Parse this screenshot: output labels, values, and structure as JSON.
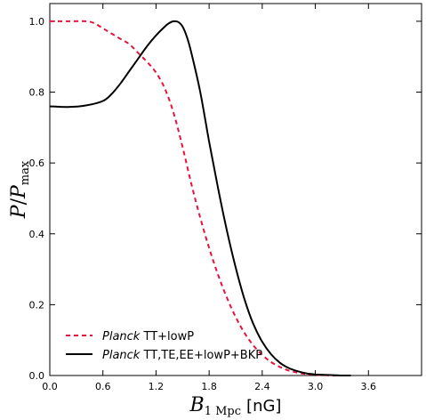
{
  "chart_data": {
    "type": "line",
    "xlabel": "B_{1 Mpc} [nG]",
    "xlabel_main": "B",
    "xlabel_sub": "1 Mpc",
    "xlabel_unit": "[nG]",
    "ylabel": "P/P_max",
    "ylabel_p": "P",
    "ylabel_slash": "/",
    "ylabel_pmax": "P",
    "ylabel_sub": "max",
    "xlim": [
      0.0,
      4.2
    ],
    "ylim": [
      0.0,
      1.05
    ],
    "xticks": [
      "0.0",
      "0.6",
      "1.2",
      "1.8",
      "2.4",
      "3.0",
      "3.6"
    ],
    "xtick_values": [
      0.0,
      0.6,
      1.2,
      1.8,
      2.4,
      3.0,
      3.6
    ],
    "yticks": [
      "0.0",
      "0.2",
      "0.4",
      "0.6",
      "0.8",
      "1.0"
    ],
    "ytick_values": [
      0.0,
      0.2,
      0.4,
      0.6,
      0.8,
      1.0
    ],
    "grid": false,
    "legend_position": "bottom-left",
    "series": [
      {
        "name_italic": "Planck",
        "name_rest": " TT+lowP",
        "color": "#e8123c",
        "style": "dashed",
        "x": [
          0.0,
          0.2,
          0.4,
          0.5,
          0.6,
          0.7,
          0.8,
          0.9,
          1.0,
          1.1,
          1.2,
          1.3,
          1.4,
          1.5,
          1.6,
          1.7,
          1.8,
          1.9,
          2.0,
          2.1,
          2.2,
          2.3,
          2.4,
          2.5,
          2.6,
          2.7,
          2.8,
          2.9,
          3.0,
          3.1,
          3.2,
          3.3,
          3.4
        ],
        "y": [
          1.0,
          1.0,
          1.0,
          0.995,
          0.98,
          0.965,
          0.95,
          0.935,
          0.91,
          0.885,
          0.855,
          0.81,
          0.74,
          0.645,
          0.54,
          0.445,
          0.36,
          0.285,
          0.22,
          0.165,
          0.12,
          0.085,
          0.058,
          0.038,
          0.024,
          0.014,
          0.008,
          0.004,
          0.002,
          0.001,
          0.0,
          0.0,
          0.0
        ]
      },
      {
        "name_italic": "Planck",
        "name_rest": " TT,TE,EE+lowP+BKP",
        "color": "#000000",
        "style": "solid",
        "x": [
          0.0,
          0.2,
          0.4,
          0.6,
          0.7,
          0.8,
          0.9,
          1.0,
          1.1,
          1.2,
          1.3,
          1.35,
          1.4,
          1.45,
          1.5,
          1.55,
          1.6,
          1.7,
          1.8,
          1.9,
          2.0,
          2.1,
          2.2,
          2.3,
          2.4,
          2.5,
          2.6,
          2.7,
          2.8,
          2.9,
          3.0,
          3.1,
          3.2,
          3.3,
          3.4
        ],
        "y": [
          0.76,
          0.758,
          0.762,
          0.775,
          0.795,
          0.825,
          0.86,
          0.895,
          0.93,
          0.96,
          0.985,
          0.995,
          1.0,
          0.998,
          0.985,
          0.955,
          0.91,
          0.8,
          0.66,
          0.53,
          0.41,
          0.305,
          0.215,
          0.145,
          0.095,
          0.06,
          0.036,
          0.021,
          0.012,
          0.006,
          0.003,
          0.002,
          0.001,
          0.0,
          0.0
        ]
      }
    ]
  }
}
